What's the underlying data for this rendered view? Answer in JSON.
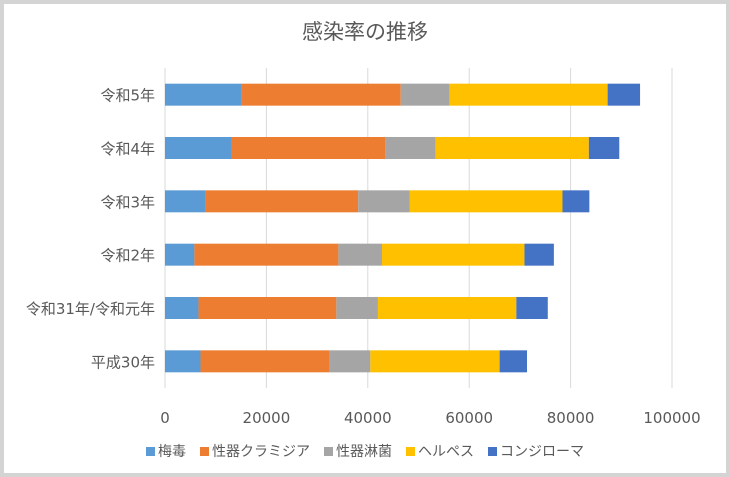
{
  "chart_data": {
    "type": "bar",
    "orientation": "horizontal",
    "stacked": true,
    "title": "感染率の推移",
    "categories": [
      "平成30年",
      "令和31年/令和元年",
      "令和2年",
      "令和3年",
      "令和4年",
      "令和5年"
    ],
    "series": [
      {
        "name": "梅毒",
        "color": "#5b9bd5",
        "values": [
          7000,
          6600,
          5800,
          7900,
          13200,
          15000
        ]
      },
      {
        "name": "性器クラミジア",
        "color": "#ed7d31",
        "values": [
          25500,
          27200,
          28400,
          30200,
          30200,
          31500
        ]
      },
      {
        "name": "性器淋菌",
        "color": "#a5a5a5",
        "values": [
          8000,
          8200,
          8600,
          10200,
          10000,
          9600
        ]
      },
      {
        "name": "ヘルペス",
        "color": "#ffc000",
        "values": [
          25500,
          27300,
          28100,
          30100,
          30200,
          31200
        ]
      },
      {
        "name": "コンジローマ",
        "color": "#4472c4",
        "values": [
          5400,
          6200,
          5800,
          5300,
          6000,
          6400
        ]
      }
    ],
    "xlim": [
      0,
      100000
    ],
    "xticks": [
      "0",
      "20000",
      "40000",
      "60000",
      "80000",
      "100000"
    ],
    "grid": true,
    "legend_position": "bottom"
  }
}
